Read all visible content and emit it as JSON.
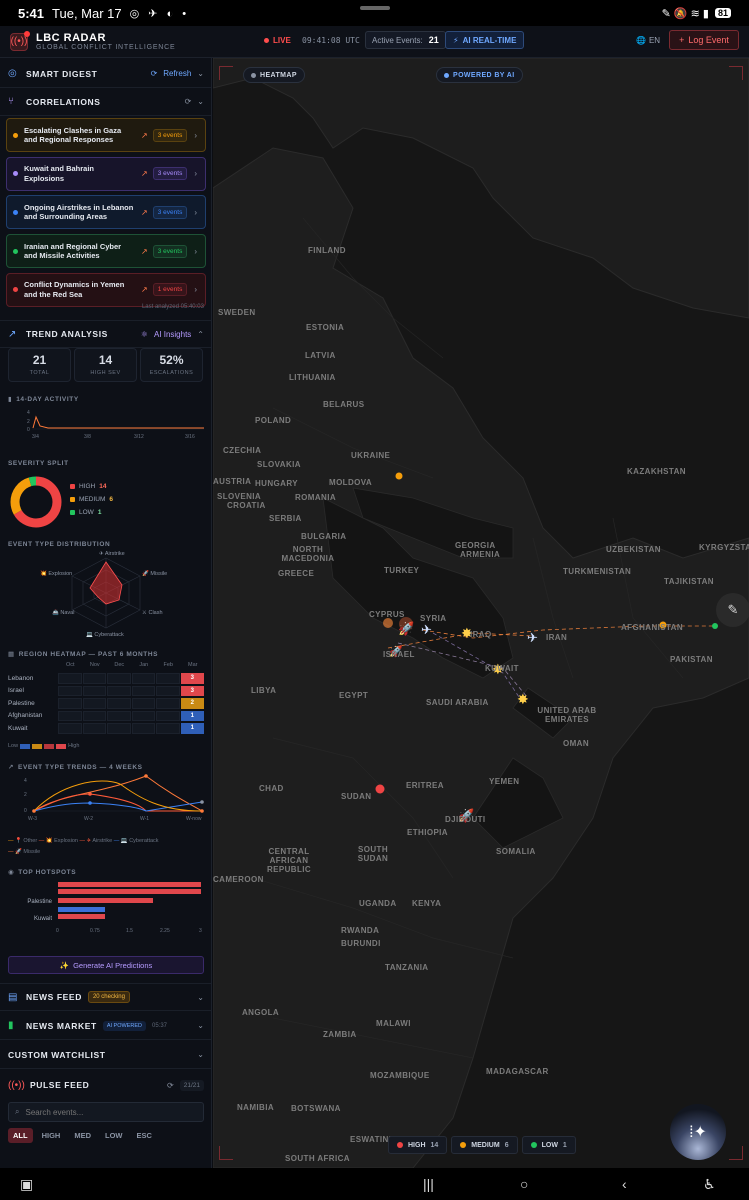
{
  "status_bar": {
    "time": "5:41",
    "date": "Tue, Mar 17",
    "icons": "◎ ✈ ◐ •",
    "right_icons": "✎ 🔕 ≋ ▮",
    "battery": "81"
  },
  "header": {
    "app_title": "LBC RADAR",
    "app_subtitle": "GLOBAL CONFLICT INTELLIGENCE",
    "live_label": "LIVE",
    "clock": "09:41:08",
    "timezone": "UTC",
    "active_events_label": "Active Events:",
    "active_events_count": "21",
    "ai_realtime_label": "AI REAL-TIME",
    "language": "EN",
    "log_event_label": "Log Event"
  },
  "sidebar": {
    "smart_digest": {
      "title": "SMART DIGEST",
      "refresh_label": "Refresh"
    },
    "correlations": {
      "title": "CORRELATIONS",
      "items": [
        {
          "title": "Escalating Clashes in Gaza and Regional Responses",
          "count": "3 events",
          "color": "#f59e0b",
          "bg": "#1f1a0f",
          "border": "#5a4210"
        },
        {
          "title": "Kuwait and Bahrain Explosions",
          "count": "3 events",
          "color": "#a78bfa",
          "bg": "#17142a",
          "border": "#3d2f6e"
        },
        {
          "title": "Ongoing Airstrikes in Lebanon and Surrounding Areas",
          "count": "3 events",
          "color": "#3b82f6",
          "bg": "#0f1a2c",
          "border": "#1f3f6e"
        },
        {
          "title": "Iranian and Regional Cyber and Missile Activities",
          "count": "3 events",
          "color": "#22c55e",
          "bg": "#0e1f17",
          "border": "#1e5236"
        },
        {
          "title": "Conflict Dynamics in Yemen and the Red Sea",
          "count": "1 events",
          "color": "#ef4444",
          "bg": "#241014",
          "border": "#5a1e26"
        }
      ],
      "last_analyzed": "Last analyzed 05:40:03"
    },
    "trend_analysis": {
      "title": "TREND ANALYSIS",
      "ai_insights_label": "AI Insights",
      "stats": [
        {
          "value": "21",
          "label": "TOTAL",
          "color": "#6fa8ff"
        },
        {
          "value": "14",
          "label": "HIGH SEV",
          "color": "#ff6b5a"
        },
        {
          "value": "52%",
          "label": "ESCALATIONS",
          "color": "#f5b942"
        }
      ],
      "activity_label": "14-DAY ACTIVITY",
      "activity_ticks": [
        "3/4",
        "3/8",
        "3/12",
        "3/16"
      ],
      "activity_y": [
        "4",
        "2",
        "0"
      ],
      "severity_label": "SEVERITY SPLIT",
      "severity": [
        {
          "label": "HIGH",
          "value": 14,
          "color": "#ef4444"
        },
        {
          "label": "MEDIUM",
          "value": 6,
          "color": "#f59e0b"
        },
        {
          "label": "LOW",
          "value": 1,
          "color": "#22c55e"
        }
      ],
      "event_type_label": "EVENT TYPE DISTRIBUTION",
      "radar_labels": {
        "airstrike": "Airstrike",
        "missile": "Missile",
        "clash": "Clash",
        "cyberattack": "Cyberattack",
        "naval": "Naval",
        "explosion": "Explosion"
      }
    },
    "region_heatmap": {
      "title": "REGION HEATMAP — PAST 6 MONTHS",
      "months": [
        "Oct",
        "Nov",
        "Dec",
        "Jan",
        "Feb",
        "Mar"
      ],
      "rows": [
        {
          "region": "Lebanon",
          "mar": "3",
          "color": "#e0474c"
        },
        {
          "region": "Israel",
          "mar": "3",
          "color": "#e0474c"
        },
        {
          "region": "Palestine",
          "mar": "2",
          "color": "#c98a14"
        },
        {
          "region": "Afghanistan",
          "mar": "1",
          "color": "#2f5fb8"
        },
        {
          "region": "Kuwait",
          "mar": "1",
          "color": "#2f5fb8"
        }
      ],
      "low_label": "Low",
      "high_label": "High"
    },
    "event_trends": {
      "title": "EVENT TYPE TRENDS — 4 WEEKS",
      "y_ticks": [
        "4",
        "2",
        "0"
      ],
      "x_ticks": [
        "W-3",
        "W-2",
        "W-1",
        "W-now"
      ],
      "legend": [
        "Other",
        "Explosion",
        "Airstrike",
        "Cyberattack",
        "Missile"
      ]
    },
    "hotspots": {
      "title": "TOP HOTSPOTS",
      "labels": [
        "",
        "",
        "Palestine",
        "",
        "Kuwait"
      ],
      "x_ticks": [
        "0",
        "0.75",
        "1.5",
        "2.25",
        "3"
      ]
    },
    "generate_label": "Generate AI Predictions",
    "news_feed": {
      "title": "NEWS FEED",
      "badge": "20 checking"
    },
    "news_market": {
      "title": "NEWS MARKET",
      "badge": "AI POWERED",
      "time": "05:37"
    },
    "watchlist": {
      "title": "CUSTOM WATCHLIST"
    },
    "pulse_feed": {
      "title": "PULSE FEED",
      "count": "21/21",
      "search_placeholder": "Search events...",
      "filters": [
        "ALL",
        "HIGH",
        "MED",
        "LOW",
        "ESC"
      ]
    }
  },
  "map": {
    "heatmap_label": "HEATMAP",
    "powered_label": "POWERED BY AI",
    "countries": [
      {
        "n": "FINLAND"
      },
      {
        "n": "SWEDEN"
      },
      {
        "n": "ESTONIA"
      },
      {
        "n": "LATVIA"
      },
      {
        "n": "LITHUANIA"
      },
      {
        "n": "BELARUS"
      },
      {
        "n": "POLAND"
      },
      {
        "n": "UKRAINE"
      },
      {
        "n": "CZECHIA"
      },
      {
        "n": "SLOVAKIA"
      },
      {
        "n": "AUSTRIA"
      },
      {
        "n": "HUNGARY"
      },
      {
        "n": "MOLDOVA"
      },
      {
        "n": "ROMANIA"
      },
      {
        "n": "SLOVENIA"
      },
      {
        "n": "CROATIA"
      },
      {
        "n": "SERBIA"
      },
      {
        "n": "BULGARIA"
      },
      {
        "n": "NORTH MACEDONIA"
      },
      {
        "n": "GREECE"
      },
      {
        "n": "TURKEY"
      },
      {
        "n": "GEORGIA"
      },
      {
        "n": "ARMENIA"
      },
      {
        "n": "KAZAKHSTAN"
      },
      {
        "n": "UZBEKISTAN"
      },
      {
        "n": "KYRGYZSTAN"
      },
      {
        "n": "TURKMENISTAN"
      },
      {
        "n": "TAJIKISTAN"
      },
      {
        "n": "AFGHANISTAN"
      },
      {
        "n": "PAKISTAN"
      },
      {
        "n": "IRAN"
      },
      {
        "n": "CYPRUS"
      },
      {
        "n": "SYRIA"
      },
      {
        "n": "ISRAEL"
      },
      {
        "n": "IRAQ"
      },
      {
        "n": "KUWAIT"
      },
      {
        "n": "LIBYA"
      },
      {
        "n": "EGYPT"
      },
      {
        "n": "SAUDI ARABIA"
      },
      {
        "n": "UNITED ARAB EMIRATES"
      },
      {
        "n": "OMAN"
      },
      {
        "n": "YEMEN"
      },
      {
        "n": "CHAD"
      },
      {
        "n": "SUDAN"
      },
      {
        "n": "ERITREA"
      },
      {
        "n": "DJIBOUTI"
      },
      {
        "n": "ETHIOPIA"
      },
      {
        "n": "SOUTH SUDAN"
      },
      {
        "n": "SOMALIA"
      },
      {
        "n": "CENTRAL AFRICAN REPUBLIC"
      },
      {
        "n": "CAMEROON"
      },
      {
        "n": "UGANDA"
      },
      {
        "n": "KENYA"
      },
      {
        "n": "RWANDA"
      },
      {
        "n": "BURUNDI"
      },
      {
        "n": "TANZANIA"
      },
      {
        "n": "ANGOLA"
      },
      {
        "n": "ZAMBIA"
      },
      {
        "n": "MALAWI"
      },
      {
        "n": "MOZAMBIQUE"
      },
      {
        "n": "MADAGASCAR"
      },
      {
        "n": "NAMIBIA"
      },
      {
        "n": "BOTSWANA"
      },
      {
        "n": "ESWATINI"
      },
      {
        "n": "SOUTH AFRICA"
      }
    ],
    "legend": [
      {
        "label": "HIGH",
        "count": "14",
        "color": "#ef4444"
      },
      {
        "label": "MEDIUM",
        "count": "6",
        "color": "#f59e0b"
      },
      {
        "label": "LOW",
        "count": "1",
        "color": "#22c55e"
      }
    ]
  }
}
